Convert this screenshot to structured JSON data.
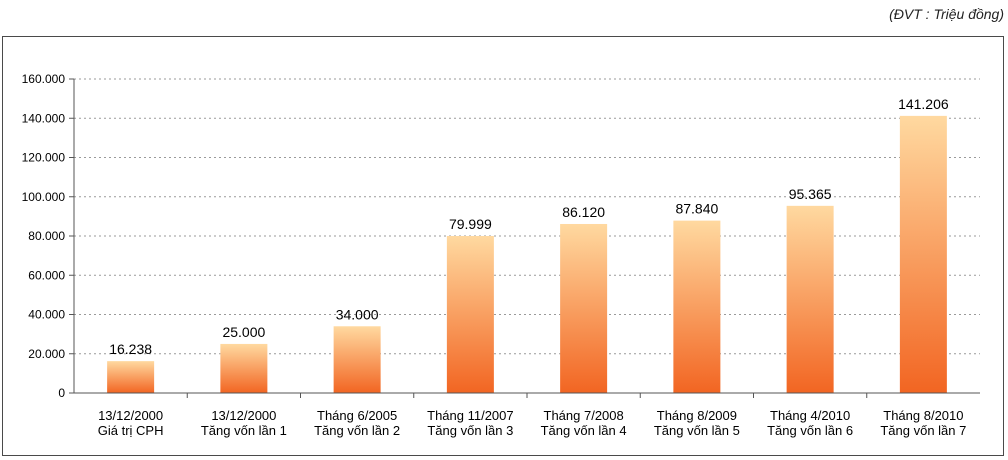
{
  "unit_note": "(ĐVT : Triệu đồng)",
  "colors": {
    "bar_top": "#ffd9a0",
    "bar_bottom": "#f26522",
    "grid": "#9a9a9a",
    "axis": "#555555"
  },
  "chart_data": {
    "type": "bar",
    "categories": [
      [
        "13/12/2000",
        "Giá trị CPH"
      ],
      [
        "13/12/2000",
        "Tăng vốn lần 1"
      ],
      [
        "Tháng 6/2005",
        "Tăng vốn lần 2"
      ],
      [
        "Tháng 11/2007",
        "Tăng vốn lần 3"
      ],
      [
        "Tháng 7/2008",
        "Tăng vốn lần 4"
      ],
      [
        "Tháng 8/2009",
        "Tăng vốn lần 5"
      ],
      [
        "Tháng 4/2010",
        "Tăng vốn lần 6"
      ],
      [
        "Tháng 8/2010",
        "Tăng vốn lần 7"
      ]
    ],
    "values": [
      16238,
      25000,
      34000,
      79999,
      86120,
      87840,
      95365,
      141206
    ],
    "data_labels": [
      "16.238",
      "25.000",
      "34.000",
      "79.999",
      "86.120",
      "87.840",
      "95.365",
      "141.206"
    ],
    "ylim": [
      0,
      160000
    ],
    "yticks": [
      0,
      20000,
      40000,
      60000,
      80000,
      100000,
      120000,
      140000,
      160000
    ],
    "ytick_labels": [
      "0",
      "20.000",
      "40.000",
      "60.000",
      "80.000",
      "100.000",
      "120.000",
      "140.000",
      "160.000"
    ],
    "grid": true,
    "grid_style": "dashed",
    "legend": "none"
  }
}
